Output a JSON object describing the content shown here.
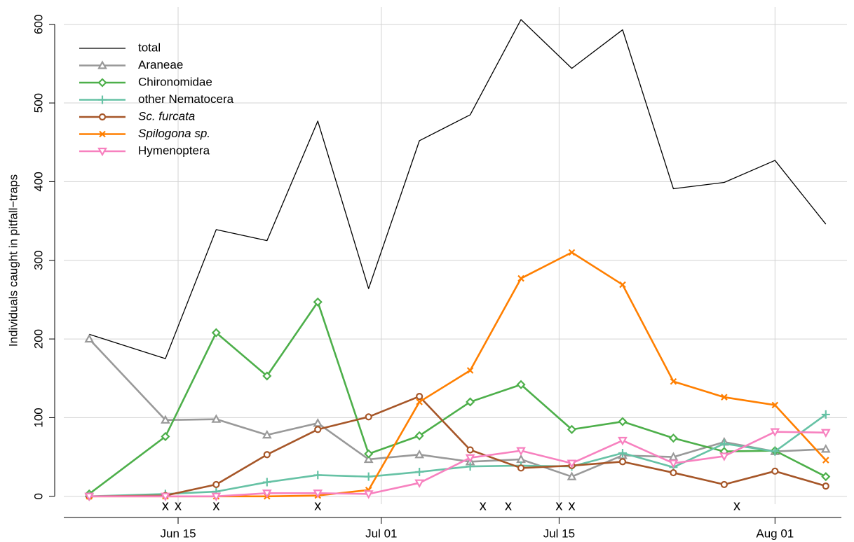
{
  "chart_data": {
    "type": "line",
    "ylabel": "Individuals caught in pitfall−traps",
    "x": [
      8,
      14,
      18,
      22,
      26,
      30,
      34,
      38,
      42,
      46,
      50,
      54,
      58,
      62,
      66
    ],
    "xlim": [
      6,
      68
    ],
    "xticks": [
      {
        "value": 15,
        "label": "Jun 15"
      },
      {
        "value": 31,
        "label": "Jul 01"
      },
      {
        "value": 45,
        "label": "Jul 15"
      },
      {
        "value": 62,
        "label": "Aug 01"
      }
    ],
    "ylim": [
      -10,
      622
    ],
    "yticks": [
      0,
      100,
      200,
      300,
      400,
      500,
      600
    ],
    "grid": true,
    "legend": "upper left",
    "series": [
      {
        "name": "total",
        "color": "#000000",
        "marker": "none",
        "values": [
          206,
          175,
          339,
          325,
          477,
          264,
          452,
          485,
          606,
          544,
          593,
          391,
          399,
          427,
          346
        ]
      },
      {
        "name": "Araneae",
        "color": "#999999",
        "marker": "triangle",
        "values": [
          200,
          97,
          98,
          78,
          93,
          47,
          53,
          44,
          47,
          25,
          52,
          50,
          69,
          57,
          60
        ]
      },
      {
        "name": "Chironomidae",
        "color": "#4daf4a",
        "marker": "diamond",
        "values": [
          3,
          76,
          208,
          153,
          247,
          54,
          77,
          120,
          142,
          85,
          95,
          74,
          57,
          58,
          25
        ]
      },
      {
        "name": "other Nematocera",
        "color": "#66c2a5",
        "marker": "plus",
        "values": [
          0,
          3,
          6,
          18,
          27,
          25,
          31,
          38,
          39,
          38,
          55,
          37,
          67,
          57,
          104
        ]
      },
      {
        "name": "Sc. furcata",
        "color": "#a65628",
        "marker": "circle",
        "font_style": "italic",
        "values": [
          0,
          1,
          15,
          53,
          85,
          101,
          127,
          59,
          36,
          39,
          44,
          30,
          15,
          32,
          13
        ]
      },
      {
        "name": "Spilogona sp.",
        "color": "#ff7f00",
        "marker": "cross",
        "font_style": "italic",
        "values": [
          0,
          0,
          0,
          0,
          1,
          8,
          120,
          160,
          277,
          310,
          269,
          146,
          126,
          116,
          46
        ]
      },
      {
        "name": "Hymenoptera",
        "color": "#f781bf",
        "marker": "triangle-down",
        "values": [
          0,
          0,
          0,
          4,
          4,
          3,
          17,
          49,
          58,
          42,
          71,
          42,
          51,
          82,
          81
        ]
      }
    ],
    "x_marks": {
      "label": "x",
      "x": [
        14,
        15,
        18,
        26,
        39,
        41,
        45,
        46,
        59
      ]
    }
  }
}
